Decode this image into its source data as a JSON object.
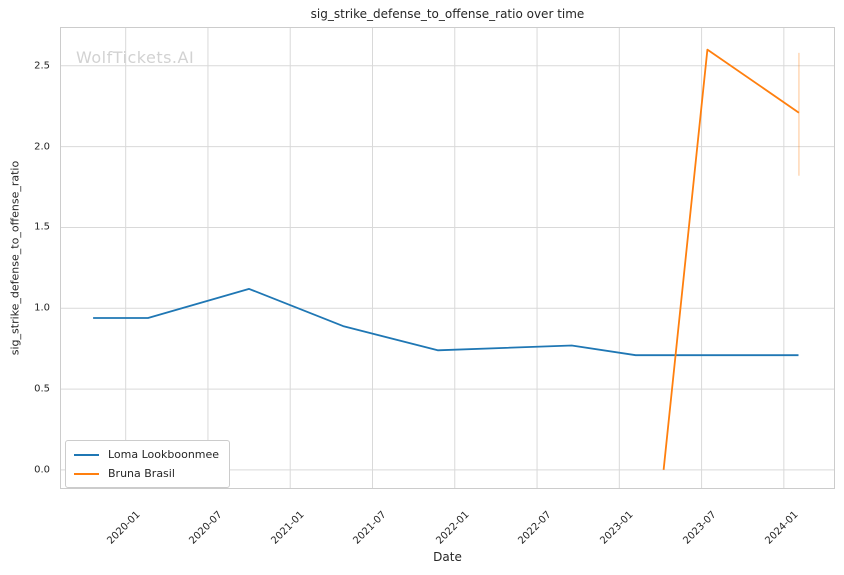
{
  "title": "sig_strike_defense_to_offense_ratio over time",
  "watermark": "WolfTickets.AI",
  "colors": {
    "grid": "#d9d9d9",
    "spine": "#cccccc",
    "text": "#262626",
    "watermark": "#d2d2d2",
    "series_blue": "#1f77b4",
    "series_orange": "#ff7f0e"
  },
  "chart_data": {
    "type": "line",
    "title": "sig_strike_defense_to_offense_ratio over time",
    "xlabel": "Date",
    "ylabel": "sig_strike_defense_to_offense_ratio",
    "grid": true,
    "legend_position": "lower left",
    "x_tick_labels": [
      "2020-01",
      "2020-07",
      "2021-01",
      "2021-07",
      "2022-01",
      "2022-07",
      "2023-01",
      "2023-07",
      "2024-01"
    ],
    "y_ticks": [
      0.0,
      0.5,
      1.0,
      1.5,
      2.0,
      2.5
    ],
    "xlim_months": [
      -4.79,
      51.73
    ],
    "ylim": [
      -0.118,
      2.74
    ],
    "series": [
      {
        "name": "Loma Lookboonmee",
        "color": "#1f77b4",
        "points": [
          [
            "2019-10-20",
            0.94
          ],
          [
            "2020-02-20",
            0.94
          ],
          [
            "2020-10-01",
            1.12
          ],
          [
            "2021-04-27",
            0.89
          ],
          [
            "2021-11-24",
            0.74
          ],
          [
            "2022-09-17",
            0.77
          ],
          [
            "2023-02-07",
            0.71
          ],
          [
            "2024-02-03",
            0.71
          ]
        ]
      },
      {
        "name": "Bruna Brasil",
        "color": "#ff7f0e",
        "points": [
          [
            "2023-04-08",
            0.0
          ],
          [
            "2023-07-14",
            2.6
          ],
          [
            "2024-02-04",
            2.21
          ]
        ],
        "error_bar_last": {
          "low": 1.82,
          "high": 2.58
        }
      }
    ]
  }
}
